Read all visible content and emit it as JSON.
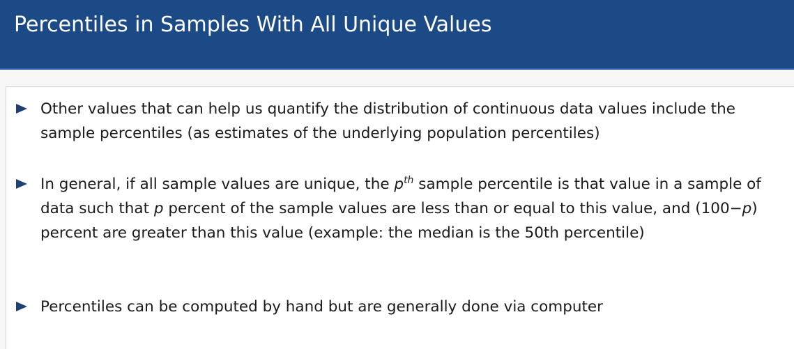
{
  "slide": {
    "title": "Percentiles in Samples With All Unique Values"
  },
  "bullets": [
    {
      "text": "Other values that can help us quantify the distribution of continuous data values include the sample percentiles (as estimates of the underlying population percentiles)"
    },
    {
      "seg1": "In general, if all sample values are unique, the ",
      "p1": "p",
      "sup": "th",
      "seg2": " sample percentile is that value in a sample of data such that ",
      "p2": "p",
      "seg3": " percent of the sample values are less than or equal to this value, and (100−",
      "p3": "p",
      "seg4": ") percent are greater than this value (example: the median is the 50th percentile)"
    },
    {
      "text": "Percentiles can be computed by hand but are generally done via computer"
    }
  ],
  "colors": {
    "title_bar": "#1c4a86",
    "title_text": "#ffffff",
    "bullet_marker": "#1f3f73",
    "body_text": "#1a1a1a"
  },
  "icons": {
    "bullet_marker": "triangle-right-icon"
  }
}
